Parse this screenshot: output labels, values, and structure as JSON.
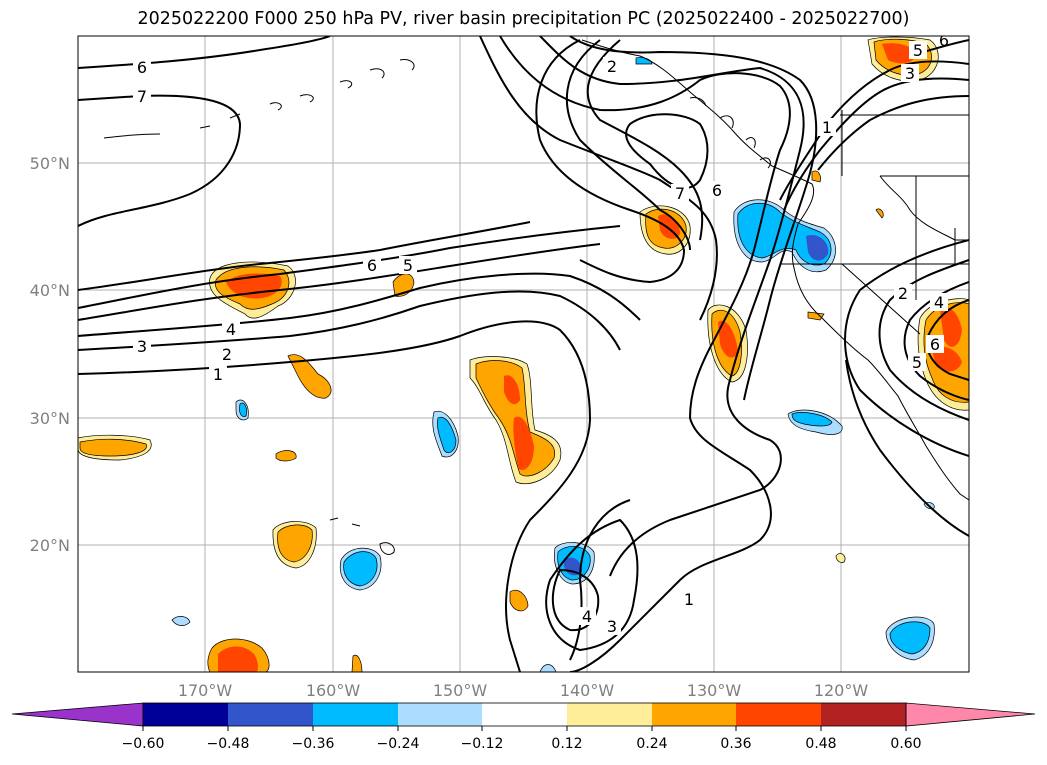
{
  "title": "2025022200 F000 250 hPa PV, river basin precipitation PC (2025022400 - 2025022700)",
  "map": {
    "lat_labels": [
      "50°N",
      "40°N",
      "30°N",
      "20°N"
    ],
    "lon_labels": [
      "170°W",
      "160°W",
      "150°W",
      "140°W",
      "130°W",
      "120°W"
    ],
    "pv_contour_labels": [
      "6",
      "7",
      "2",
      "1",
      "7",
      "6",
      "6",
      "5",
      "4",
      "3",
      "2",
      "1",
      "2",
      "4",
      "5",
      "6",
      "4",
      "3",
      "1",
      "5",
      "3",
      "6"
    ]
  },
  "colorbar": {
    "colors": [
      "#9933cc",
      "#000099",
      "#3355cc",
      "#00bbff",
      "#aaddff",
      "#ffffff",
      "#ffee99",
      "#ffa500",
      "#ff4500",
      "#b22222",
      "#ff88aa"
    ],
    "tick_labels": [
      "−0.60",
      "−0.48",
      "−0.36",
      "−0.24",
      "−0.12",
      "0.12",
      "0.24",
      "0.36",
      "0.48",
      "0.60"
    ]
  }
}
